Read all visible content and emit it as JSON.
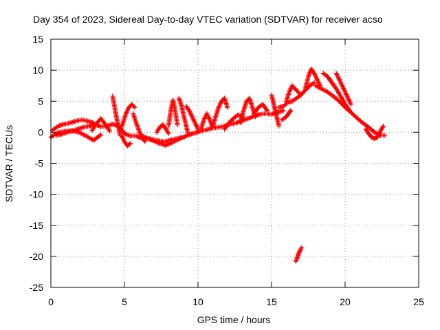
{
  "chart_data": {
    "type": "scatter",
    "title": "Day 354 of 2023, Sidereal Day-to-day VTEC variation (SDTVAR) for receiver acso",
    "xlabel": "GPS time / hours",
    "ylabel": "SDTVAR / TECUs",
    "xlim": [
      0,
      25
    ],
    "ylim": [
      -25,
      15
    ],
    "xticks": [
      0,
      5,
      10,
      15,
      20,
      25
    ],
    "yticks": [
      -25,
      -20,
      -15,
      -10,
      -5,
      0,
      5,
      10,
      15
    ],
    "xtick_labels": [
      "0",
      "5",
      "10",
      "15",
      "20",
      "25"
    ],
    "ytick_labels": [
      "-25",
      "-20",
      "-15",
      "-10",
      "-5",
      "0",
      "5",
      "10",
      "15"
    ],
    "grid": true,
    "marker": "plus",
    "series": [
      {
        "name": "SDTVAR",
        "color": "#ff0000",
        "segments": [
          {
            "x": [
              0.0,
              0.3,
              0.6,
              1.0,
              1.4,
              1.8,
              2.2,
              2.6,
              3.0,
              3.4,
              3.8,
              4.2,
              4.6,
              5.0,
              5.4,
              5.8,
              6.2,
              6.6,
              7.0,
              7.4,
              7.8,
              8.2,
              8.6,
              9.0,
              9.4,
              9.8,
              10.2,
              10.6,
              11.0,
              11.4,
              11.8,
              12.2,
              12.6,
              13.0,
              13.4,
              13.8,
              14.2,
              14.6,
              15.0,
              15.4,
              15.8
            ],
            "y": [
              -0.8,
              -0.3,
              0.0,
              0.2,
              0.1,
              0.5,
              0.8,
              1.0,
              1.3,
              0.9,
              1.0,
              1.3,
              1.0,
              -0.2,
              -0.6,
              -0.6,
              -1.0,
              -1.0,
              -1.2,
              -1.4,
              -1.5,
              -1.2,
              -1.0,
              -0.8,
              -0.4,
              -0.1,
              0.2,
              0.4,
              0.7,
              0.8,
              1.0,
              1.3,
              1.5,
              1.9,
              2.2,
              2.6,
              2.9,
              3.0,
              2.9,
              3.2,
              3.5
            ]
          },
          {
            "x": [
              0.1,
              0.5,
              0.9,
              1.3,
              1.7,
              2.1,
              2.5,
              2.9
            ],
            "y": [
              0.3,
              1.0,
              1.3,
              1.5,
              1.8,
              2.0,
              1.8,
              1.5
            ]
          },
          {
            "x": [
              0.4,
              0.9,
              1.4,
              1.9,
              2.4,
              2.9,
              3.4
            ],
            "y": [
              -0.5,
              -0.2,
              0.3,
              0.0,
              -0.6,
              -1.3,
              -0.4
            ]
          },
          {
            "x": [
              2.8,
              3.1,
              3.4,
              3.7,
              4.0
            ],
            "y": [
              0.3,
              1.4,
              2.2,
              1.3,
              0.2
            ]
          },
          {
            "x": [
              4.2,
              4.3,
              4.45,
              4.6,
              4.7
            ],
            "y": [
              5.8,
              4.5,
              2.5,
              0.8,
              -0.5
            ]
          },
          {
            "x": [
              4.7,
              4.9,
              5.1,
              5.3,
              5.5,
              5.7
            ],
            "y": [
              0.2,
              1.5,
              3.0,
              4.0,
              4.5,
              4.0
            ]
          },
          {
            "x": [
              4.8,
              5.0,
              5.2,
              5.4
            ],
            "y": [
              -0.5,
              -1.5,
              -2.2,
              -1.8
            ]
          },
          {
            "x": [
              5.6,
              5.8,
              6.0,
              6.2,
              6.4
            ],
            "y": [
              3.0,
              1.5,
              0.2,
              -0.8,
              -1.5
            ]
          },
          {
            "x": [
              6.2,
              6.6,
              7.0,
              7.4,
              7.8,
              8.2,
              8.6,
              9.0
            ],
            "y": [
              -0.6,
              -1.0,
              -1.4,
              -1.8,
              -2.1,
              -1.7,
              -1.2,
              -0.8
            ]
          },
          {
            "x": [
              7.2,
              7.4,
              7.6,
              7.8,
              8.0
            ],
            "y": [
              0.0,
              0.8,
              1.2,
              0.6,
              -0.2
            ]
          },
          {
            "x": [
              8.0,
              8.15,
              8.3,
              8.45,
              8.6
            ],
            "y": [
              1.0,
              3.5,
              5.2,
              3.5,
              1.2
            ]
          },
          {
            "x": [
              8.7,
              8.85,
              9.0,
              9.15,
              9.3
            ],
            "y": [
              5.5,
              4.5,
              3.0,
              1.5,
              0.0
            ]
          },
          {
            "x": [
              9.2,
              9.4,
              9.6,
              9.8,
              10.0
            ],
            "y": [
              4.2,
              3.5,
              2.5,
              1.5,
              0.5
            ]
          },
          {
            "x": [
              10.2,
              10.4,
              10.6,
              10.8,
              11.0
            ],
            "y": [
              0.5,
              2.0,
              3.0,
              2.0,
              0.8
            ]
          },
          {
            "x": [
              11.0,
              11.2,
              11.4,
              11.6,
              11.8,
              12.0
            ],
            "y": [
              1.0,
              2.5,
              4.0,
              5.0,
              5.5,
              4.0
            ]
          },
          {
            "x": [
              11.8,
              12.1,
              12.4,
              12.7,
              13.0
            ],
            "y": [
              0.5,
              1.5,
              2.2,
              2.8,
              2.5
            ]
          },
          {
            "x": [
              12.9,
              13.1,
              13.3,
              13.5,
              13.7,
              13.9
            ],
            "y": [
              1.5,
              3.5,
              5.0,
              5.5,
              4.0,
              2.5
            ]
          },
          {
            "x": [
              13.8,
              14.1,
              14.4,
              14.7
            ],
            "y": [
              3.0,
              4.0,
              4.5,
              3.5
            ]
          },
          {
            "x": [
              15.0,
              15.1,
              15.2,
              15.3,
              15.4,
              15.5
            ],
            "y": [
              6.0,
              5.0,
              4.0,
              3.0,
              2.0,
              1.0
            ]
          },
          {
            "x": [
              15.5,
              15.8,
              16.1,
              16.4,
              16.7,
              17.0,
              17.3,
              17.6,
              17.9
            ],
            "y": [
              4.0,
              4.2,
              4.8,
              5.0,
              5.5,
              6.0,
              6.8,
              7.5,
              8.0
            ]
          },
          {
            "x": [
              16.0,
              16.2,
              16.4,
              16.6,
              16.8,
              17.0
            ],
            "y": [
              5.0,
              6.5,
              7.5,
              7.0,
              6.5,
              6.0
            ]
          },
          {
            "x": [
              15.7,
              16.0,
              16.3
            ],
            "y": [
              2.0,
              2.5,
              3.5
            ]
          },
          {
            "x": [
              17.3,
              17.5,
              17.7,
              17.9,
              18.1,
              18.3
            ],
            "y": [
              7.0,
              9.0,
              10.2,
              9.5,
              8.5,
              7.5
            ]
          },
          {
            "x": [
              18.0,
              18.4,
              18.8,
              19.2,
              19.6,
              20.0,
              20.4,
              20.8,
              21.2,
              21.6,
              22.0,
              22.4,
              22.7
            ],
            "y": [
              7.5,
              7.0,
              6.5,
              5.8,
              5.0,
              4.0,
              3.2,
              2.3,
              1.5,
              0.8,
              0.0,
              -0.5,
              -0.5
            ]
          },
          {
            "x": [
              18.5,
              18.8,
              19.1,
              19.4,
              19.7,
              20.0,
              20.3
            ],
            "y": [
              9.5,
              9.0,
              8.0,
              7.0,
              5.8,
              4.5,
              3.5
            ]
          },
          {
            "x": [
              19.4,
              19.6,
              19.8,
              20.0,
              20.2,
              20.4
            ],
            "y": [
              9.5,
              8.5,
              7.5,
              6.5,
              5.5,
              4.5
            ]
          },
          {
            "x": [
              21.4,
              21.6,
              21.8,
              22.0,
              22.2,
              22.4,
              22.6
            ],
            "y": [
              0.5,
              -0.2,
              -0.8,
              -1.0,
              -0.8,
              0.2,
              1.0
            ]
          },
          {
            "x": [
              16.65,
              16.75,
              16.85,
              16.95,
              17.05
            ],
            "y": [
              -20.8,
              -20.2,
              -19.5,
              -19.0,
              -18.6
            ]
          }
        ]
      }
    ]
  }
}
